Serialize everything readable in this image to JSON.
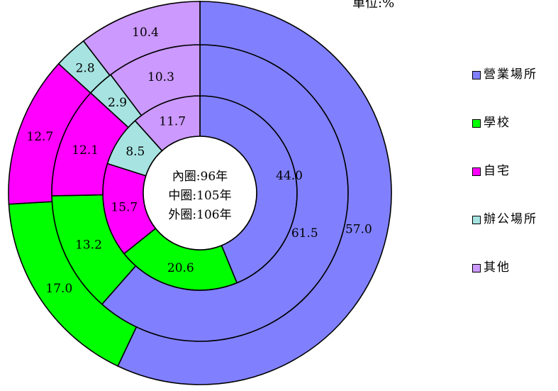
{
  "unit_label": "單位:%",
  "chart_data": {
    "type": "pie",
    "variant": "multi-ring donut",
    "categories": [
      "營業場所",
      "學校",
      "自宅",
      "辦公場所",
      "其他"
    ],
    "colors": [
      "#8080ff",
      "#00ff00",
      "#ff00ff",
      "#a6e3e1",
      "#cc99ff"
    ],
    "rings": [
      {
        "name": "96年",
        "position": "inner",
        "values": [
          44.0,
          20.6,
          15.7,
          8.5,
          11.7
        ]
      },
      {
        "name": "105年",
        "position": "middle",
        "values": [
          61.5,
          13.2,
          12.1,
          2.9,
          10.3
        ]
      },
      {
        "name": "106年",
        "position": "outer",
        "values": [
          57.0,
          17.0,
          12.7,
          2.8,
          10.4
        ]
      }
    ],
    "center_text": [
      "內圈:96年",
      "中圈:105年",
      "外圈:106年"
    ],
    "legend_position": "right"
  }
}
